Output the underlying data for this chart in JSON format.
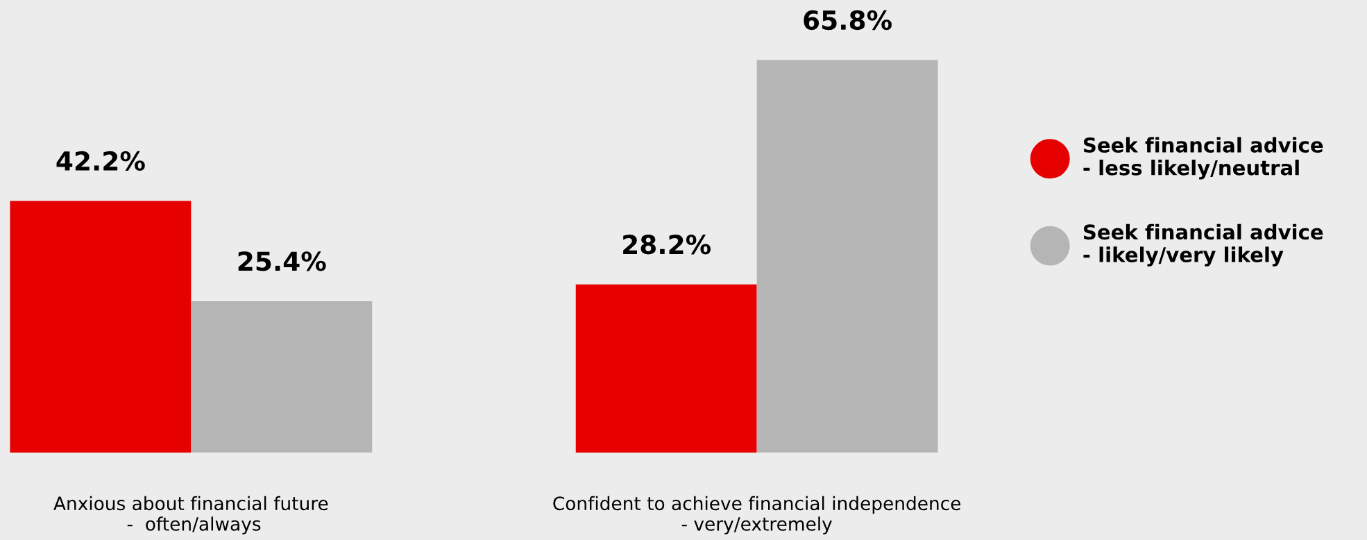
{
  "chart_data": {
    "type": "bar",
    "categories": [
      "Anxious about financial future\n -  often/always",
      "Confident to achieve financial independence\n- very/extremely"
    ],
    "series": [
      {
        "name": "Seek financial advice\n- less likely/neutral",
        "color": "#e60000",
        "values": [
          42.2,
          28.2
        ],
        "value_labels": [
          "42.2%",
          "28.2%"
        ]
      },
      {
        "name": "Seek financial advice\n- likely/very likely",
        "color": "#b5b5b5",
        "values": [
          25.4,
          65.8
        ],
        "value_labels": [
          "25.4%",
          "65.8%"
        ]
      }
    ],
    "legend": "right",
    "tick_labels": "x",
    "grid": false
  }
}
